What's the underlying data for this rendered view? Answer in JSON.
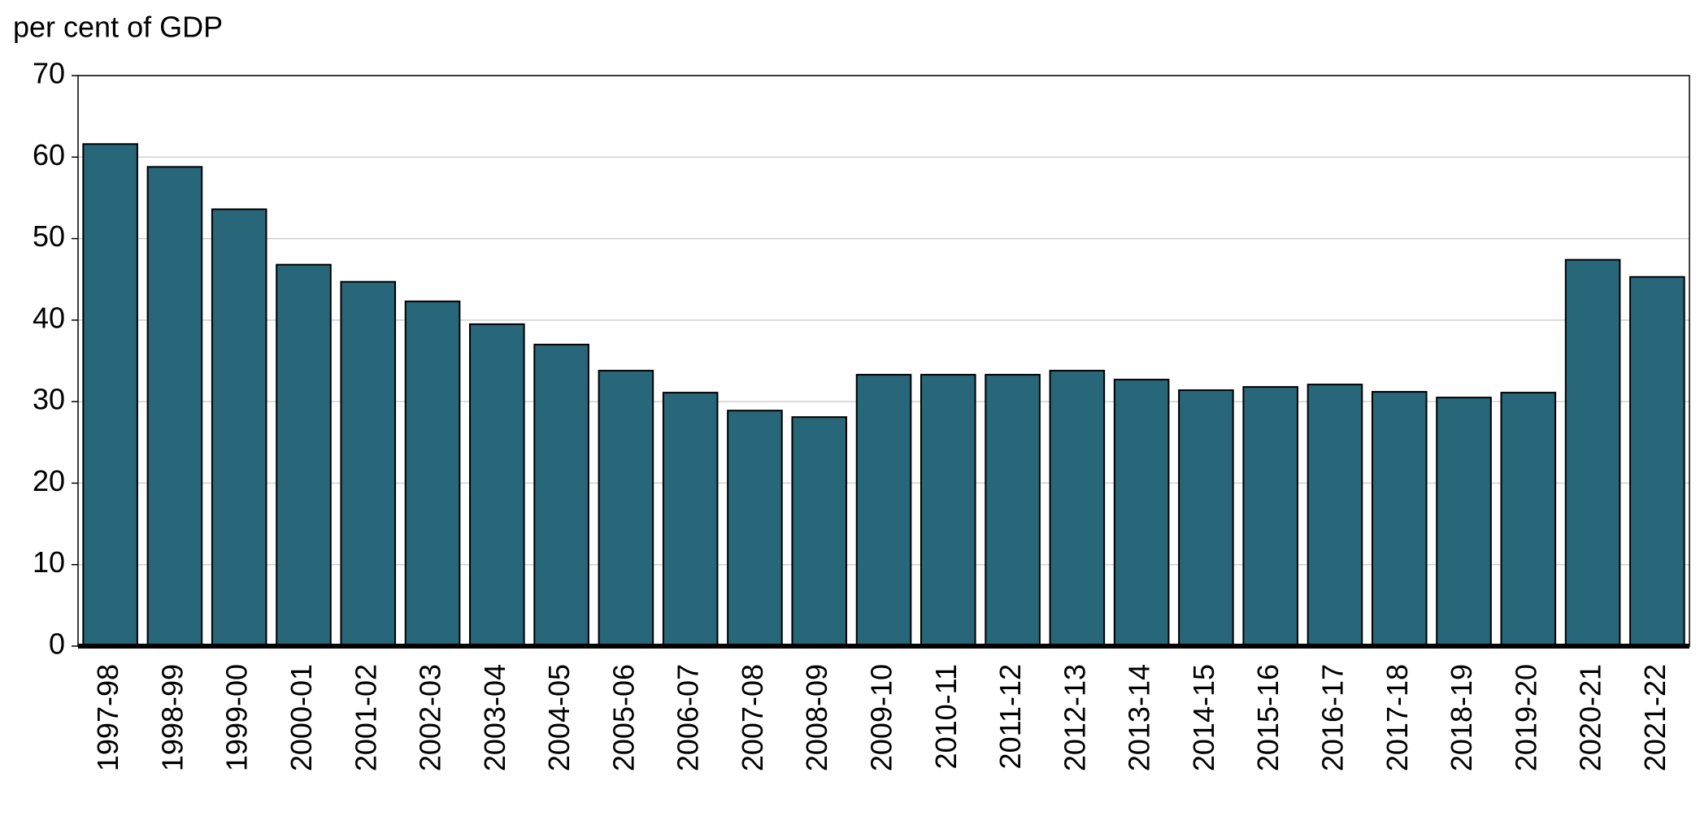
{
  "chart_data": {
    "type": "bar",
    "y_label": "per cent of GDP",
    "categories": [
      "1997-98",
      "1998-99",
      "1999-00",
      "2000-01",
      "2001-02",
      "2002-03",
      "2003-04",
      "2004-05",
      "2005-06",
      "2006-07",
      "2007-08",
      "2008-09",
      "2009-10",
      "2010-11",
      "2011-12",
      "2012-13",
      "2013-14",
      "2014-15",
      "2015-16",
      "2016-17",
      "2017-18",
      "2018-19",
      "2019-20",
      "2020-21",
      "2021-22"
    ],
    "values": [
      61.6,
      58.8,
      53.6,
      46.8,
      44.7,
      42.3,
      39.5,
      37.0,
      33.8,
      31.1,
      28.9,
      28.1,
      33.3,
      33.3,
      33.3,
      33.8,
      32.7,
      31.4,
      31.8,
      32.1,
      31.2,
      30.5,
      31.1,
      47.4,
      45.3
    ],
    "color": "#28667a",
    "ylim": [
      0,
      70
    ],
    "yticks": [
      0,
      10,
      20,
      30,
      40,
      50,
      60,
      70
    ],
    "grid": true
  }
}
